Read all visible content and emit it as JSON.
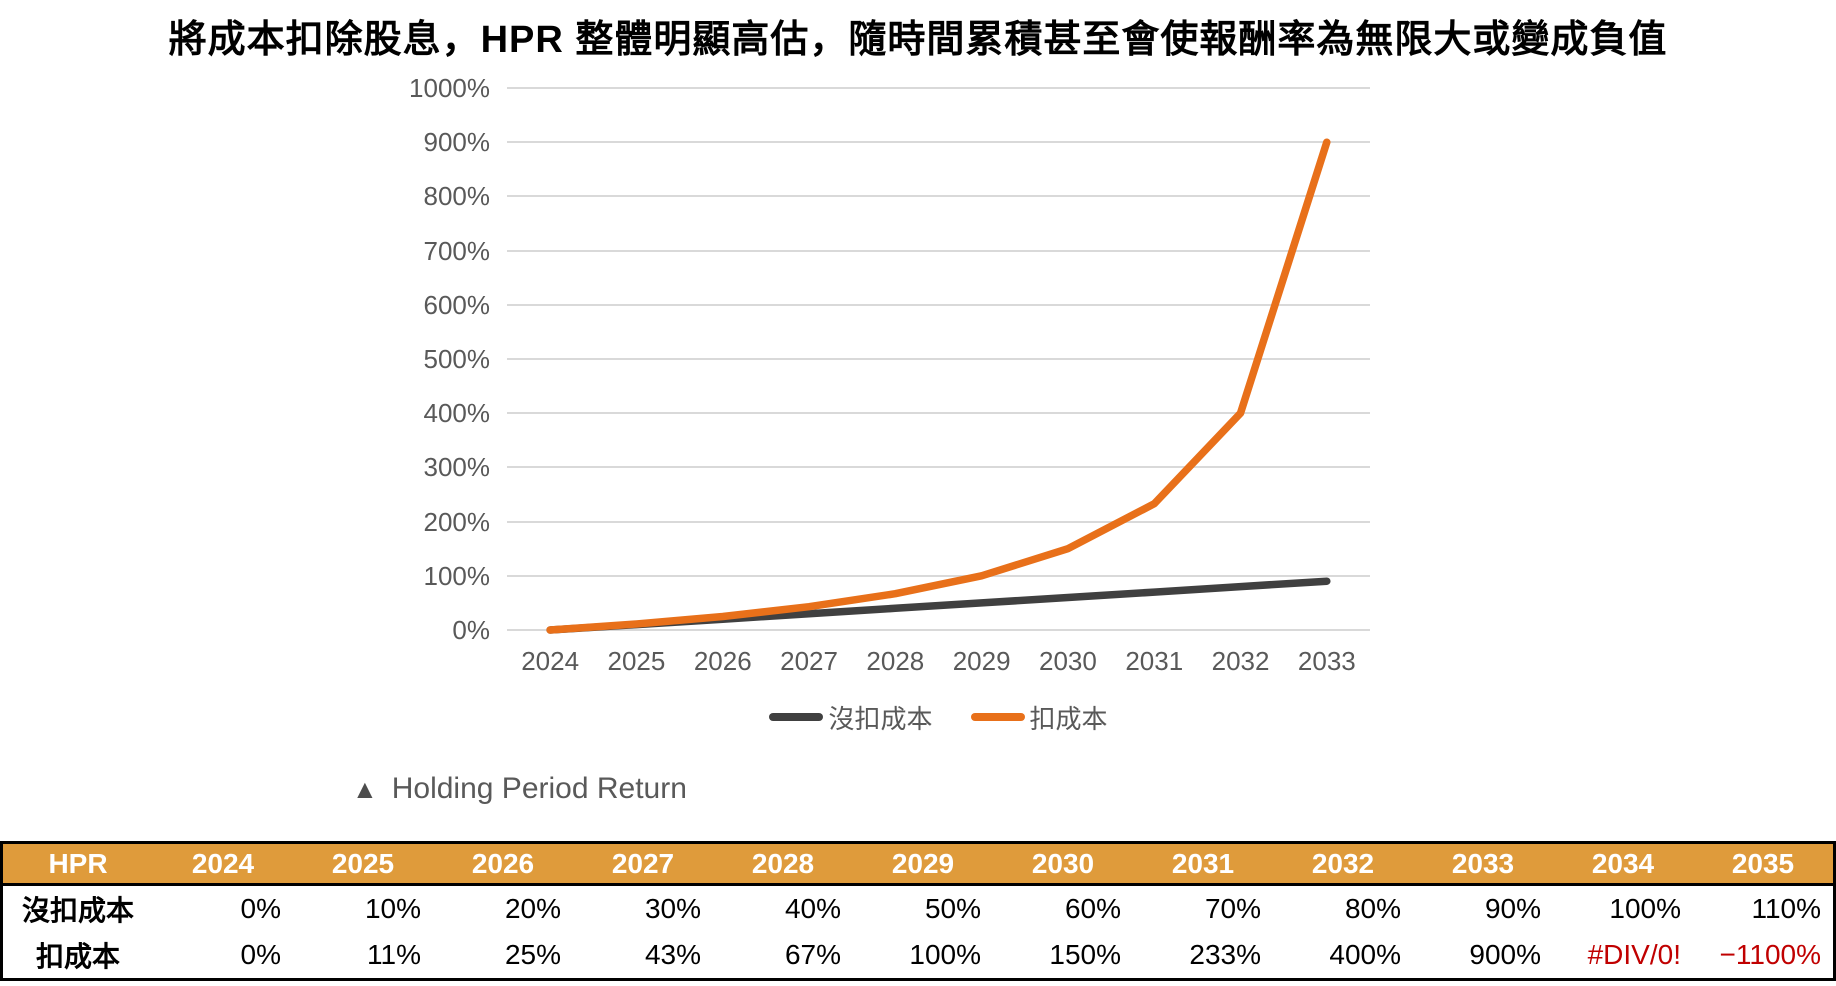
{
  "title": "將成本扣除股息，HPR 整體明顯高估，隨時間累積甚至會使報酬率為無限大或變成負值",
  "chart": {
    "caption_marker": "▲",
    "caption_text": "Holding Period Return"
  },
  "chart_data": {
    "type": "line",
    "title": "",
    "xlabel": "",
    "ylabel": "",
    "x_labels": [
      "2024",
      "2025",
      "2026",
      "2027",
      "2028",
      "2029",
      "2030",
      "2031",
      "2032",
      "2033"
    ],
    "y_tick_labels": [
      "0%",
      "100%",
      "200%",
      "300%",
      "400%",
      "500%",
      "600%",
      "700%",
      "800%",
      "900%",
      "1000%"
    ],
    "ylim": [
      0,
      1000
    ],
    "grid": true,
    "legend_position": "bottom",
    "gridline_color": "#d9d9d9",
    "tick_color": "#595959",
    "series": [
      {
        "name": "沒扣成本",
        "color": "#404040",
        "values": [
          0,
          10,
          20,
          30,
          40,
          50,
          60,
          70,
          80,
          90
        ]
      },
      {
        "name": "扣成本",
        "color": "#E8701A",
        "values": [
          0,
          11,
          25,
          43,
          67,
          100,
          150,
          233,
          400,
          900
        ]
      }
    ]
  },
  "table": {
    "header": [
      "HPR",
      "2024",
      "2025",
      "2026",
      "2027",
      "2028",
      "2029",
      "2030",
      "2031",
      "2032",
      "2033",
      "2034",
      "2035"
    ],
    "rows": [
      {
        "label": "沒扣成本",
        "values": [
          "0%",
          "10%",
          "20%",
          "30%",
          "40%",
          "50%",
          "60%",
          "70%",
          "80%",
          "90%",
          "100%",
          "110%"
        ],
        "error_indices": []
      },
      {
        "label": "扣成本",
        "values": [
          "0%",
          "11%",
          "25%",
          "43%",
          "67%",
          "100%",
          "150%",
          "233%",
          "400%",
          "900%",
          "#DIV/0!",
          "−1100%"
        ],
        "error_indices": [
          10,
          11
        ]
      }
    ],
    "colors": {
      "header_bg": "#DF9B3B",
      "header_text": "#FFFFFF",
      "error_text": "#C00000",
      "border": "#000000"
    }
  }
}
